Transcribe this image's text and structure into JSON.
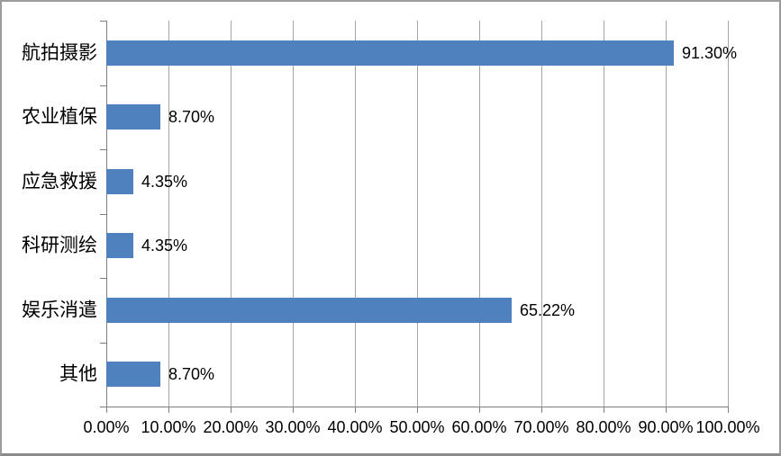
{
  "chart_data": {
    "type": "bar",
    "orientation": "horizontal",
    "title": "",
    "categories": [
      "航拍摄影",
      "农业植保",
      "应急救援",
      "科研测绘",
      "娱乐消遣",
      "其他"
    ],
    "values": [
      91.3,
      8.7,
      4.35,
      4.35,
      65.22,
      8.7
    ],
    "value_labels": [
      "91.30%",
      "8.70%",
      "4.35%",
      "4.35%",
      "65.22%",
      "8.70%"
    ],
    "x_tick_labels": [
      "0.00%",
      "10.00%",
      "20.00%",
      "30.00%",
      "40.00%",
      "50.00%",
      "60.00%",
      "70.00%",
      "80.00%",
      "90.00%",
      "100.00%"
    ],
    "xlim": [
      0,
      100
    ],
    "x_tick_step": 10,
    "grid": "vertical",
    "legend": "none",
    "colors": {
      "bar": "#4e81bd",
      "gridline": "#a6a6a6",
      "axis": "#7f7f7f",
      "text": "#000000",
      "frame_border": "#9c9c9c",
      "background": "#ffffff"
    }
  }
}
